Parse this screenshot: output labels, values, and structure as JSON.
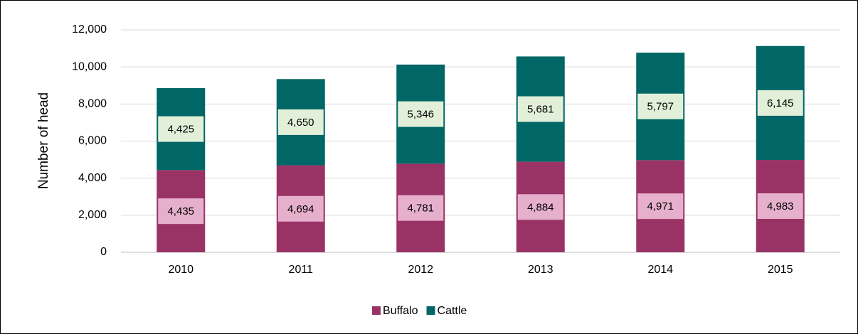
{
  "chart_data": {
    "type": "stacked_bar",
    "y_label": "Number of head",
    "categories": [
      "2010",
      "2011",
      "2012",
      "2013",
      "2014",
      "2015"
    ],
    "series": [
      {
        "name": "Buffalo",
        "color": "#993366",
        "label_fill": "#e6b0cc",
        "values": [
          4435,
          4694,
          4781,
          4884,
          4971,
          4983
        ],
        "value_labels": [
          "4,435",
          "4,694",
          "4,781",
          "4,884",
          "4,971",
          "4,983"
        ]
      },
      {
        "name": "Cattle",
        "color": "#006666",
        "label_fill": "#e2f0d9",
        "values": [
          4425,
          4650,
          5346,
          5681,
          5797,
          6145
        ],
        "value_labels": [
          "4,425",
          "4,650",
          "5,346",
          "5,681",
          "5,797",
          "6,145"
        ]
      }
    ],
    "ylim": [
      0,
      12000
    ],
    "yticks": [
      0,
      {
        "value": 2000,
        "label": "2,000"
      },
      {
        "value": 4000,
        "label": "4,000"
      },
      {
        "value": 6000,
        "label": "6,000"
      },
      {
        "value": 8000,
        "label": "8,000"
      },
      {
        "value": 10000,
        "label": "10,000"
      },
      {
        "value": 12000,
        "label": "12,000"
      }
    ],
    "grid": true,
    "legend": "bottom"
  }
}
